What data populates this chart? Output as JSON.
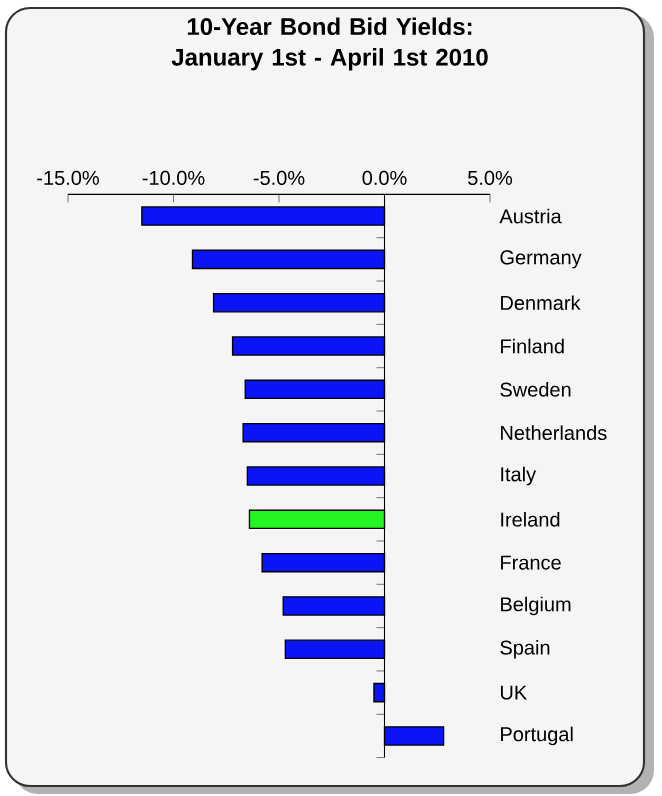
{
  "chart_data": {
    "type": "bar",
    "orientation": "horizontal",
    "title": "10-Year Bond Bid Yields: January 1st - April 1st 2010",
    "categories": [
      "Austria",
      "Germany",
      "Denmark",
      "Finland",
      "Sweden",
      "Netherlands",
      "Italy",
      "Ireland",
      "France",
      "Belgium",
      "Spain",
      "UK",
      "Portugal"
    ],
    "values": [
      -11.5,
      -9.1,
      -8.1,
      -7.2,
      -6.6,
      -6.7,
      -6.5,
      -6.4,
      -5.8,
      -4.8,
      -4.7,
      -0.5,
      2.8
    ],
    "colors": [
      "#0a14f5",
      "#0a14f5",
      "#0a14f5",
      "#0a14f5",
      "#0a14f5",
      "#0a14f5",
      "#0a14f5",
      "#22f522",
      "#0a14f5",
      "#0a14f5",
      "#0a14f5",
      "#0a14f5",
      "#0a14f5"
    ],
    "xlim": [
      -15,
      5
    ],
    "xticks": [
      {
        "value": -15,
        "label": "-15.0%"
      },
      {
        "value": -10,
        "label": "-10.0%"
      },
      {
        "value": -5,
        "label": "-5.0%"
      },
      {
        "value": 0,
        "label": "0.0%"
      },
      {
        "value": 5,
        "label": "5.0%"
      }
    ],
    "stacked": false
  }
}
